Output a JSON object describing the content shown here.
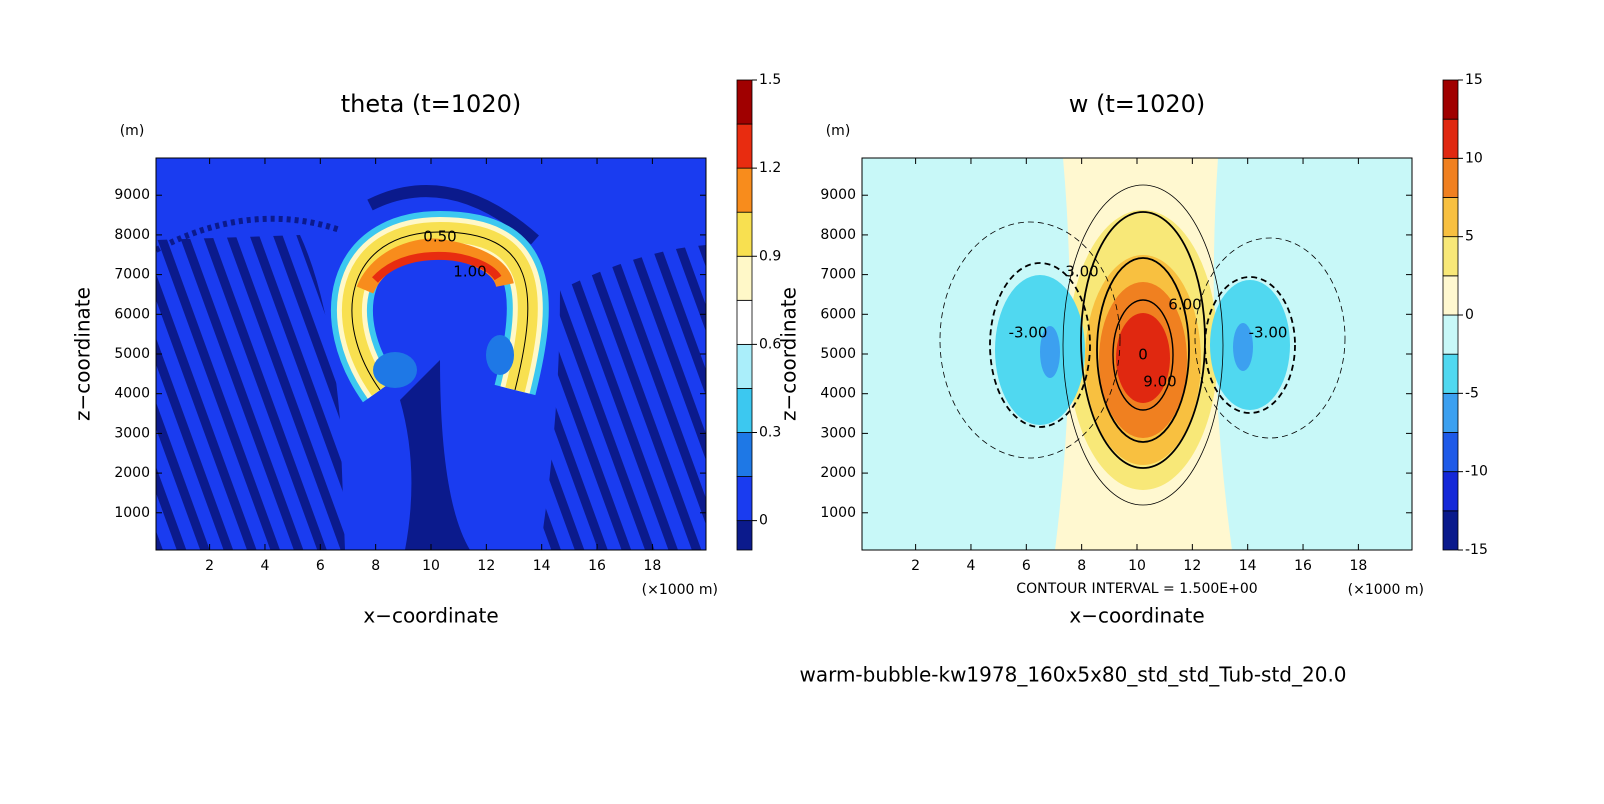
{
  "chart_data": [
    {
      "type": "contour",
      "title": "theta (t=1020)",
      "xlabel": "x−coordinate",
      "ylabel": "z−coordinate",
      "xunit": "(×1000 m)",
      "yunit": "(m)",
      "xlim": [
        0.0625,
        19.9375
      ],
      "xticks": [
        2,
        4,
        6,
        8,
        10,
        12,
        14,
        16,
        18
      ],
      "ylim": [
        62.5,
        9937.5
      ],
      "yticks": [
        1000,
        2000,
        3000,
        4000,
        5000,
        6000,
        7000,
        8000,
        9000
      ],
      "contour_labels": [
        "0.50",
        "1.00"
      ],
      "colorbar": {
        "levels": [
          -0.1,
          0,
          0.15,
          0.3,
          0.45,
          0.6,
          0.75,
          0.9,
          1.05,
          1.2,
          1.35,
          1.5
        ],
        "colors": [
          "#0b1a8c",
          "#1a3cf0",
          "#1e78e6",
          "#3cc8f0",
          "#aaeefa",
          "#ffffff",
          "#fff8c8",
          "#f8e050",
          "#f88c1c",
          "#e82c10",
          "#a00000"
        ],
        "ticks": [
          0,
          0.3,
          0.6,
          0.9,
          1.2,
          1.5
        ]
      }
    },
    {
      "type": "contour",
      "title": "w (t=1020)",
      "xlabel": "x−coordinate",
      "ylabel": "z−coordinate",
      "xunit": "(×1000 m)",
      "yunit": "(m)",
      "xlim": [
        0.0625,
        19.9375
      ],
      "xticks": [
        2,
        4,
        6,
        8,
        10,
        12,
        14,
        16,
        18
      ],
      "ylim": [
        62.5,
        9937.5
      ],
      "yticks": [
        1000,
        2000,
        3000,
        4000,
        5000,
        6000,
        7000,
        8000,
        9000
      ],
      "note": "CONTOUR INTERVAL = 1.500E+00",
      "contour_labels": [
        "-3.00",
        "3.00",
        "6.00",
        "0",
        "9.00",
        "-3.00"
      ],
      "colorbar": {
        "levels": [
          -15,
          -12.5,
          -10,
          -7.5,
          -5,
          -2.5,
          0,
          2.5,
          5,
          7.5,
          10,
          12.5,
          15
        ],
        "colors": [
          "#0a1a8c",
          "#1428d8",
          "#1e5ae8",
          "#3ca0f0",
          "#50d8f0",
          "#c8f8f8",
          "#fff8d0",
          "#f8e878",
          "#f8c040",
          "#f08020",
          "#e02810",
          "#a00000"
        ],
        "ticks": [
          -15,
          -10,
          -5,
          0,
          5,
          10,
          15
        ]
      }
    }
  ],
  "footer": "warm-bubble-kw1978_160x5x80_std_std_Tub-std_20.0"
}
